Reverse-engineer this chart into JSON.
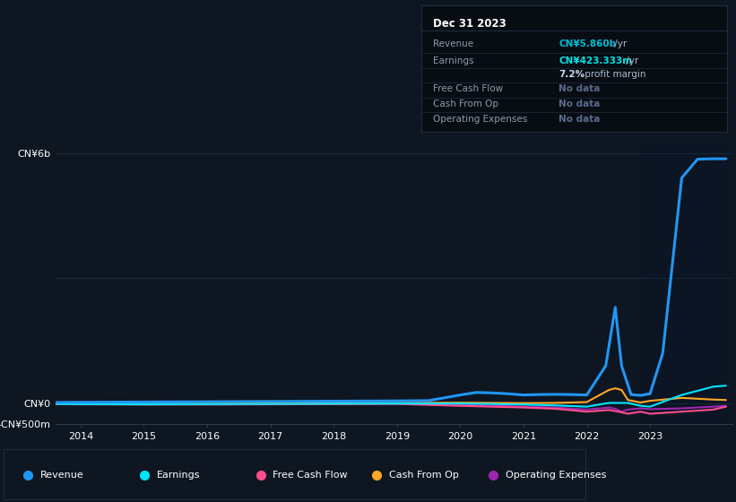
{
  "bg_color": "#0e1621",
  "chart_bg": "#0e1621",
  "grid_color": "#1e2d3d",
  "info_bg": "#080d14",
  "border_color": "#1e2d3d",
  "ylim": [
    -500,
    6200
  ],
  "xlim": [
    2013.6,
    2024.3
  ],
  "xticks": [
    2014,
    2015,
    2016,
    2017,
    2018,
    2019,
    2020,
    2021,
    2022,
    2023
  ],
  "title_text": "Dec 31 2023",
  "series": {
    "revenue": {
      "color": "#2196f3",
      "lw": 2.2,
      "years": [
        2013.6,
        2014.0,
        2014.5,
        2015.0,
        2015.5,
        2016.0,
        2016.5,
        2017.0,
        2017.5,
        2018.0,
        2018.5,
        2019.0,
        2019.5,
        2020.0,
        2020.25,
        2020.5,
        2020.75,
        2021.0,
        2021.25,
        2021.5,
        2021.75,
        2022.0,
        2022.3,
        2022.45,
        2022.55,
        2022.7,
        2022.85,
        2023.0,
        2023.2,
        2023.5,
        2023.75,
        2024.0,
        2024.2
      ],
      "values": [
        20,
        25,
        28,
        32,
        35,
        38,
        42,
        45,
        48,
        52,
        55,
        58,
        65,
        200,
        260,
        250,
        230,
        200,
        210,
        215,
        210,
        200,
        900,
        2300,
        900,
        210,
        190,
        230,
        1200,
        5400,
        5850,
        5860,
        5860
      ]
    },
    "earnings": {
      "color": "#00e5ff",
      "lw": 1.5,
      "years": [
        2013.6,
        2014.0,
        2015.0,
        2016.0,
        2017.0,
        2018.0,
        2019.0,
        2020.0,
        2021.0,
        2021.5,
        2022.0,
        2022.35,
        2022.45,
        2022.55,
        2022.65,
        2022.85,
        2023.0,
        2023.5,
        2024.0,
        2024.2
      ],
      "values": [
        -15,
        -20,
        -25,
        -20,
        -15,
        -10,
        -5,
        -5,
        -30,
        -50,
        -80,
        10,
        10,
        10,
        10,
        -60,
        -80,
        200,
        400,
        423
      ]
    },
    "free_cash_flow": {
      "color": "#ff4d8d",
      "lw": 1.5,
      "years": [
        2013.6,
        2014.0,
        2015.0,
        2016.0,
        2017.0,
        2018.0,
        2019.0,
        2020.0,
        2021.0,
        2021.5,
        2022.0,
        2022.35,
        2022.5,
        2022.65,
        2022.85,
        2023.0,
        2023.5,
        2024.0,
        2024.2
      ],
      "values": [
        -20,
        -25,
        -30,
        -30,
        -25,
        -20,
        -15,
        -60,
        -100,
        -130,
        -200,
        -160,
        -200,
        -250,
        -200,
        -250,
        -200,
        -150,
        -80
      ]
    },
    "cash_from_op": {
      "color": "#ffa726",
      "lw": 1.5,
      "years": [
        2013.6,
        2014.0,
        2015.0,
        2016.0,
        2017.0,
        2018.0,
        2019.0,
        2020.0,
        2021.0,
        2021.5,
        2022.0,
        2022.35,
        2022.45,
        2022.55,
        2022.65,
        2022.85,
        2023.0,
        2023.5,
        2024.0,
        2024.2
      ],
      "values": [
        -5,
        -5,
        -8,
        -5,
        -2,
        5,
        10,
        15,
        5,
        10,
        30,
        320,
        360,
        320,
        80,
        20,
        60,
        130,
        90,
        80
      ]
    },
    "operating_expenses": {
      "color": "#9c27b0",
      "lw": 1.5,
      "years": [
        2013.6,
        2014.0,
        2015.0,
        2016.0,
        2017.0,
        2018.0,
        2019.0,
        2020.0,
        2021.0,
        2021.5,
        2022.0,
        2022.35,
        2022.45,
        2022.55,
        2022.65,
        2022.85,
        2023.0,
        2023.5,
        2024.0,
        2024.2
      ],
      "values": [
        -10,
        -15,
        -20,
        -18,
        -12,
        -8,
        -5,
        -40,
        -80,
        -100,
        -150,
        -100,
        -130,
        -200,
        -150,
        -120,
        -140,
        -120,
        -80,
        -60
      ]
    }
  },
  "legend": [
    {
      "label": "Revenue",
      "color": "#2196f3"
    },
    {
      "label": "Earnings",
      "color": "#00e5ff"
    },
    {
      "label": "Free Cash Flow",
      "color": "#ff4d8d"
    },
    {
      "label": "Cash From Op",
      "color": "#ffa726"
    },
    {
      "label": "Operating Expenses",
      "color": "#9c27b0"
    }
  ]
}
